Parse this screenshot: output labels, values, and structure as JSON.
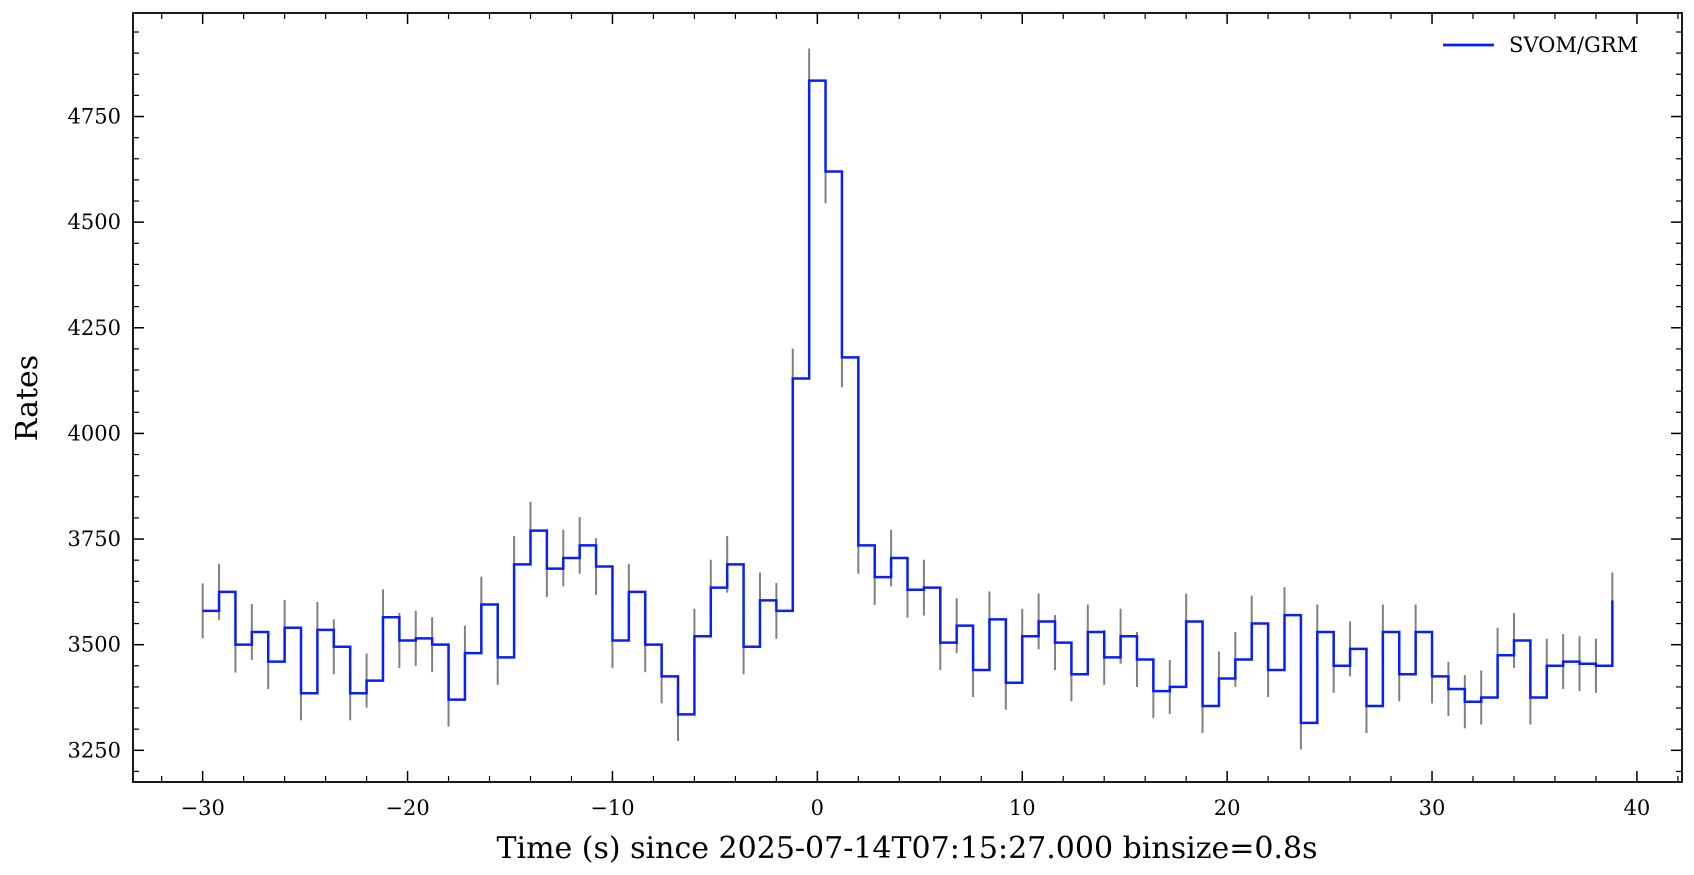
{
  "chart_data": {
    "type": "line",
    "xlabel": "Time (s) since 2025-07-14T07:15:27.000  binsize=0.8s",
    "ylabel": "Rates",
    "xlim": [
      -33.4,
      42.2
    ],
    "ylim": [
      3175,
      4995
    ],
    "x_ticks": [
      -30,
      -20,
      -10,
      0,
      10,
      20,
      30,
      40
    ],
    "x_tick_labels": [
      "−30",
      "−20",
      "−10",
      "0",
      "10",
      "20",
      "30",
      "40"
    ],
    "y_ticks": [
      3250,
      3500,
      3750,
      4000,
      4250,
      4500,
      4750
    ],
    "y_tick_labels": [
      "3250",
      "3500",
      "3750",
      "4000",
      "4250",
      "4500",
      "4750"
    ],
    "legend": {
      "position": "top-right",
      "entries": [
        "SVOM/GRM"
      ]
    },
    "grid": false,
    "step": "post",
    "binsize": 0.8,
    "colors": {
      "line": "#0a1ff2",
      "errorbar": "#808080"
    },
    "series": [
      {
        "name": "SVOM/GRM",
        "x": [
          -30.0,
          -29.2,
          -28.4,
          -27.6,
          -26.8,
          -26.0,
          -25.2,
          -24.4,
          -23.6,
          -22.8,
          -22.0,
          -21.2,
          -20.4,
          -19.6,
          -18.8,
          -18.0,
          -17.2,
          -16.4,
          -15.6,
          -14.8,
          -14.0,
          -13.2,
          -12.4,
          -11.6,
          -10.8,
          -10.0,
          -9.2,
          -8.4,
          -7.6,
          -6.8,
          -6.0,
          -5.2,
          -4.4,
          -3.6,
          -2.8,
          -2.0,
          -1.2,
          -0.4,
          0.4,
          1.2,
          2.0,
          2.8,
          3.6,
          4.4,
          5.2,
          6.0,
          6.8,
          7.6,
          8.4,
          9.2,
          10.0,
          10.8,
          11.6,
          12.4,
          13.2,
          14.0,
          14.8,
          15.6,
          16.4,
          17.2,
          18.0,
          18.8,
          19.6,
          20.4,
          21.2,
          22.0,
          22.8,
          23.6,
          24.4,
          25.2,
          26.0,
          26.8,
          27.6,
          28.4,
          29.2,
          30.0,
          30.8,
          31.6,
          32.4,
          33.2,
          34.0,
          34.8,
          35.6,
          36.4,
          37.2,
          38.0,
          38.8
        ],
        "values": [
          3580,
          3625,
          3500,
          3530,
          3460,
          3540,
          3385,
          3535,
          3495,
          3385,
          3415,
          3565,
          3510,
          3515,
          3500,
          3370,
          3480,
          3595,
          3470,
          3690,
          3770,
          3680,
          3705,
          3735,
          3685,
          3510,
          3625,
          3500,
          3425,
          3335,
          3520,
          3635,
          3690,
          3495,
          3605,
          3580,
          4130,
          4835,
          4620,
          4180,
          3735,
          3660,
          3705,
          3630,
          3635,
          3505,
          3545,
          3440,
          3560,
          3410,
          3520,
          3555,
          3505,
          3430,
          3530,
          3470,
          3520,
          3465,
          3390,
          3400,
          3555,
          3355,
          3420,
          3465,
          3550,
          3440,
          3570,
          3315,
          3530,
          3450,
          3490,
          3355,
          3530,
          3430,
          3530,
          3425,
          3395,
          3365,
          3375,
          3475,
          3510,
          3375,
          3450,
          3460,
          3455,
          3450,
          3605
        ],
        "errors": [
          65,
          66,
          66,
          66,
          65,
          66,
          64,
          66,
          65,
          64,
          64,
          66,
          65,
          65,
          65,
          64,
          65,
          66,
          65,
          67,
          68,
          67,
          67,
          67,
          67,
          65,
          66,
          65,
          64,
          63,
          65,
          66,
          67,
          65,
          66,
          66,
          71,
          76,
          75,
          71,
          67,
          66,
          67,
          66,
          66,
          65,
          65,
          64,
          66,
          64,
          65,
          66,
          65,
          64,
          65,
          65,
          65,
          65,
          64,
          64,
          66,
          64,
          64,
          65,
          66,
          64,
          66,
          63,
          65,
          64,
          65,
          64,
          65,
          64,
          65,
          64,
          64,
          63,
          64,
          65,
          65,
          64,
          64,
          65,
          65,
          64,
          66
        ]
      }
    ]
  }
}
